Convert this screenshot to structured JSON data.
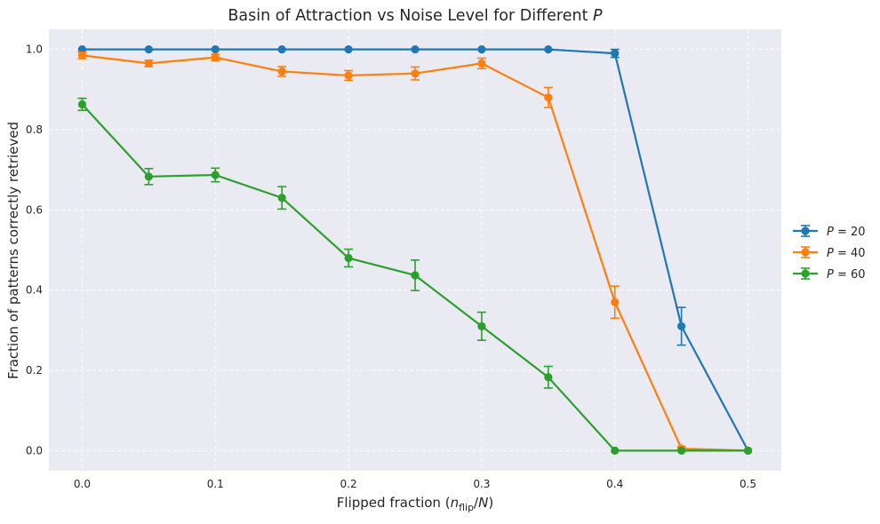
{
  "chart_data": {
    "type": "line",
    "title": "Basin of Attraction vs Noise Level for Different P",
    "xlabel": "Flipped fraction (n_flip/N)",
    "ylabel": "Fraction of patterns correctly retrieved",
    "xlim": [
      -0.025,
      0.525
    ],
    "ylim": [
      -0.05,
      1.05
    ],
    "x_ticks": [
      "0.0",
      "0.1",
      "0.2",
      "0.3",
      "0.4",
      "0.5"
    ],
    "y_ticks": [
      "0.0",
      "0.2",
      "0.4",
      "0.6",
      "0.8",
      "1.0"
    ],
    "grid": true,
    "legend_position": "center-right outside",
    "x": [
      0.0,
      0.05,
      0.1,
      0.15,
      0.2,
      0.25,
      0.3,
      0.35,
      0.4,
      0.45,
      0.5
    ],
    "series": [
      {
        "name": "P = 20",
        "color": "#1f77b4",
        "values": [
          1.0,
          1.0,
          1.0,
          1.0,
          1.0,
          1.0,
          1.0,
          1.0,
          0.99,
          0.31,
          0.0
        ],
        "errors": [
          0,
          0,
          0,
          0,
          0,
          0,
          0,
          0,
          0.01,
          0.047,
          0
        ]
      },
      {
        "name": "P = 40",
        "color": "#ff7f0e",
        "values": [
          0.985,
          0.965,
          0.98,
          0.945,
          0.935,
          0.94,
          0.965,
          0.88,
          0.37,
          0.005,
          0.0
        ],
        "errors": [
          0.008,
          0.008,
          0.008,
          0.012,
          0.012,
          0.016,
          0.013,
          0.025,
          0.04,
          0.005,
          0
        ]
      },
      {
        "name": "P = 60",
        "color": "#2ca02c",
        "values": [
          0.863,
          0.683,
          0.687,
          0.63,
          0.48,
          0.437,
          0.31,
          0.183,
          0.0,
          0.0,
          0.0
        ],
        "errors": [
          0.015,
          0.02,
          0.017,
          0.028,
          0.022,
          0.038,
          0.035,
          0.027,
          0,
          0,
          0
        ]
      }
    ]
  }
}
